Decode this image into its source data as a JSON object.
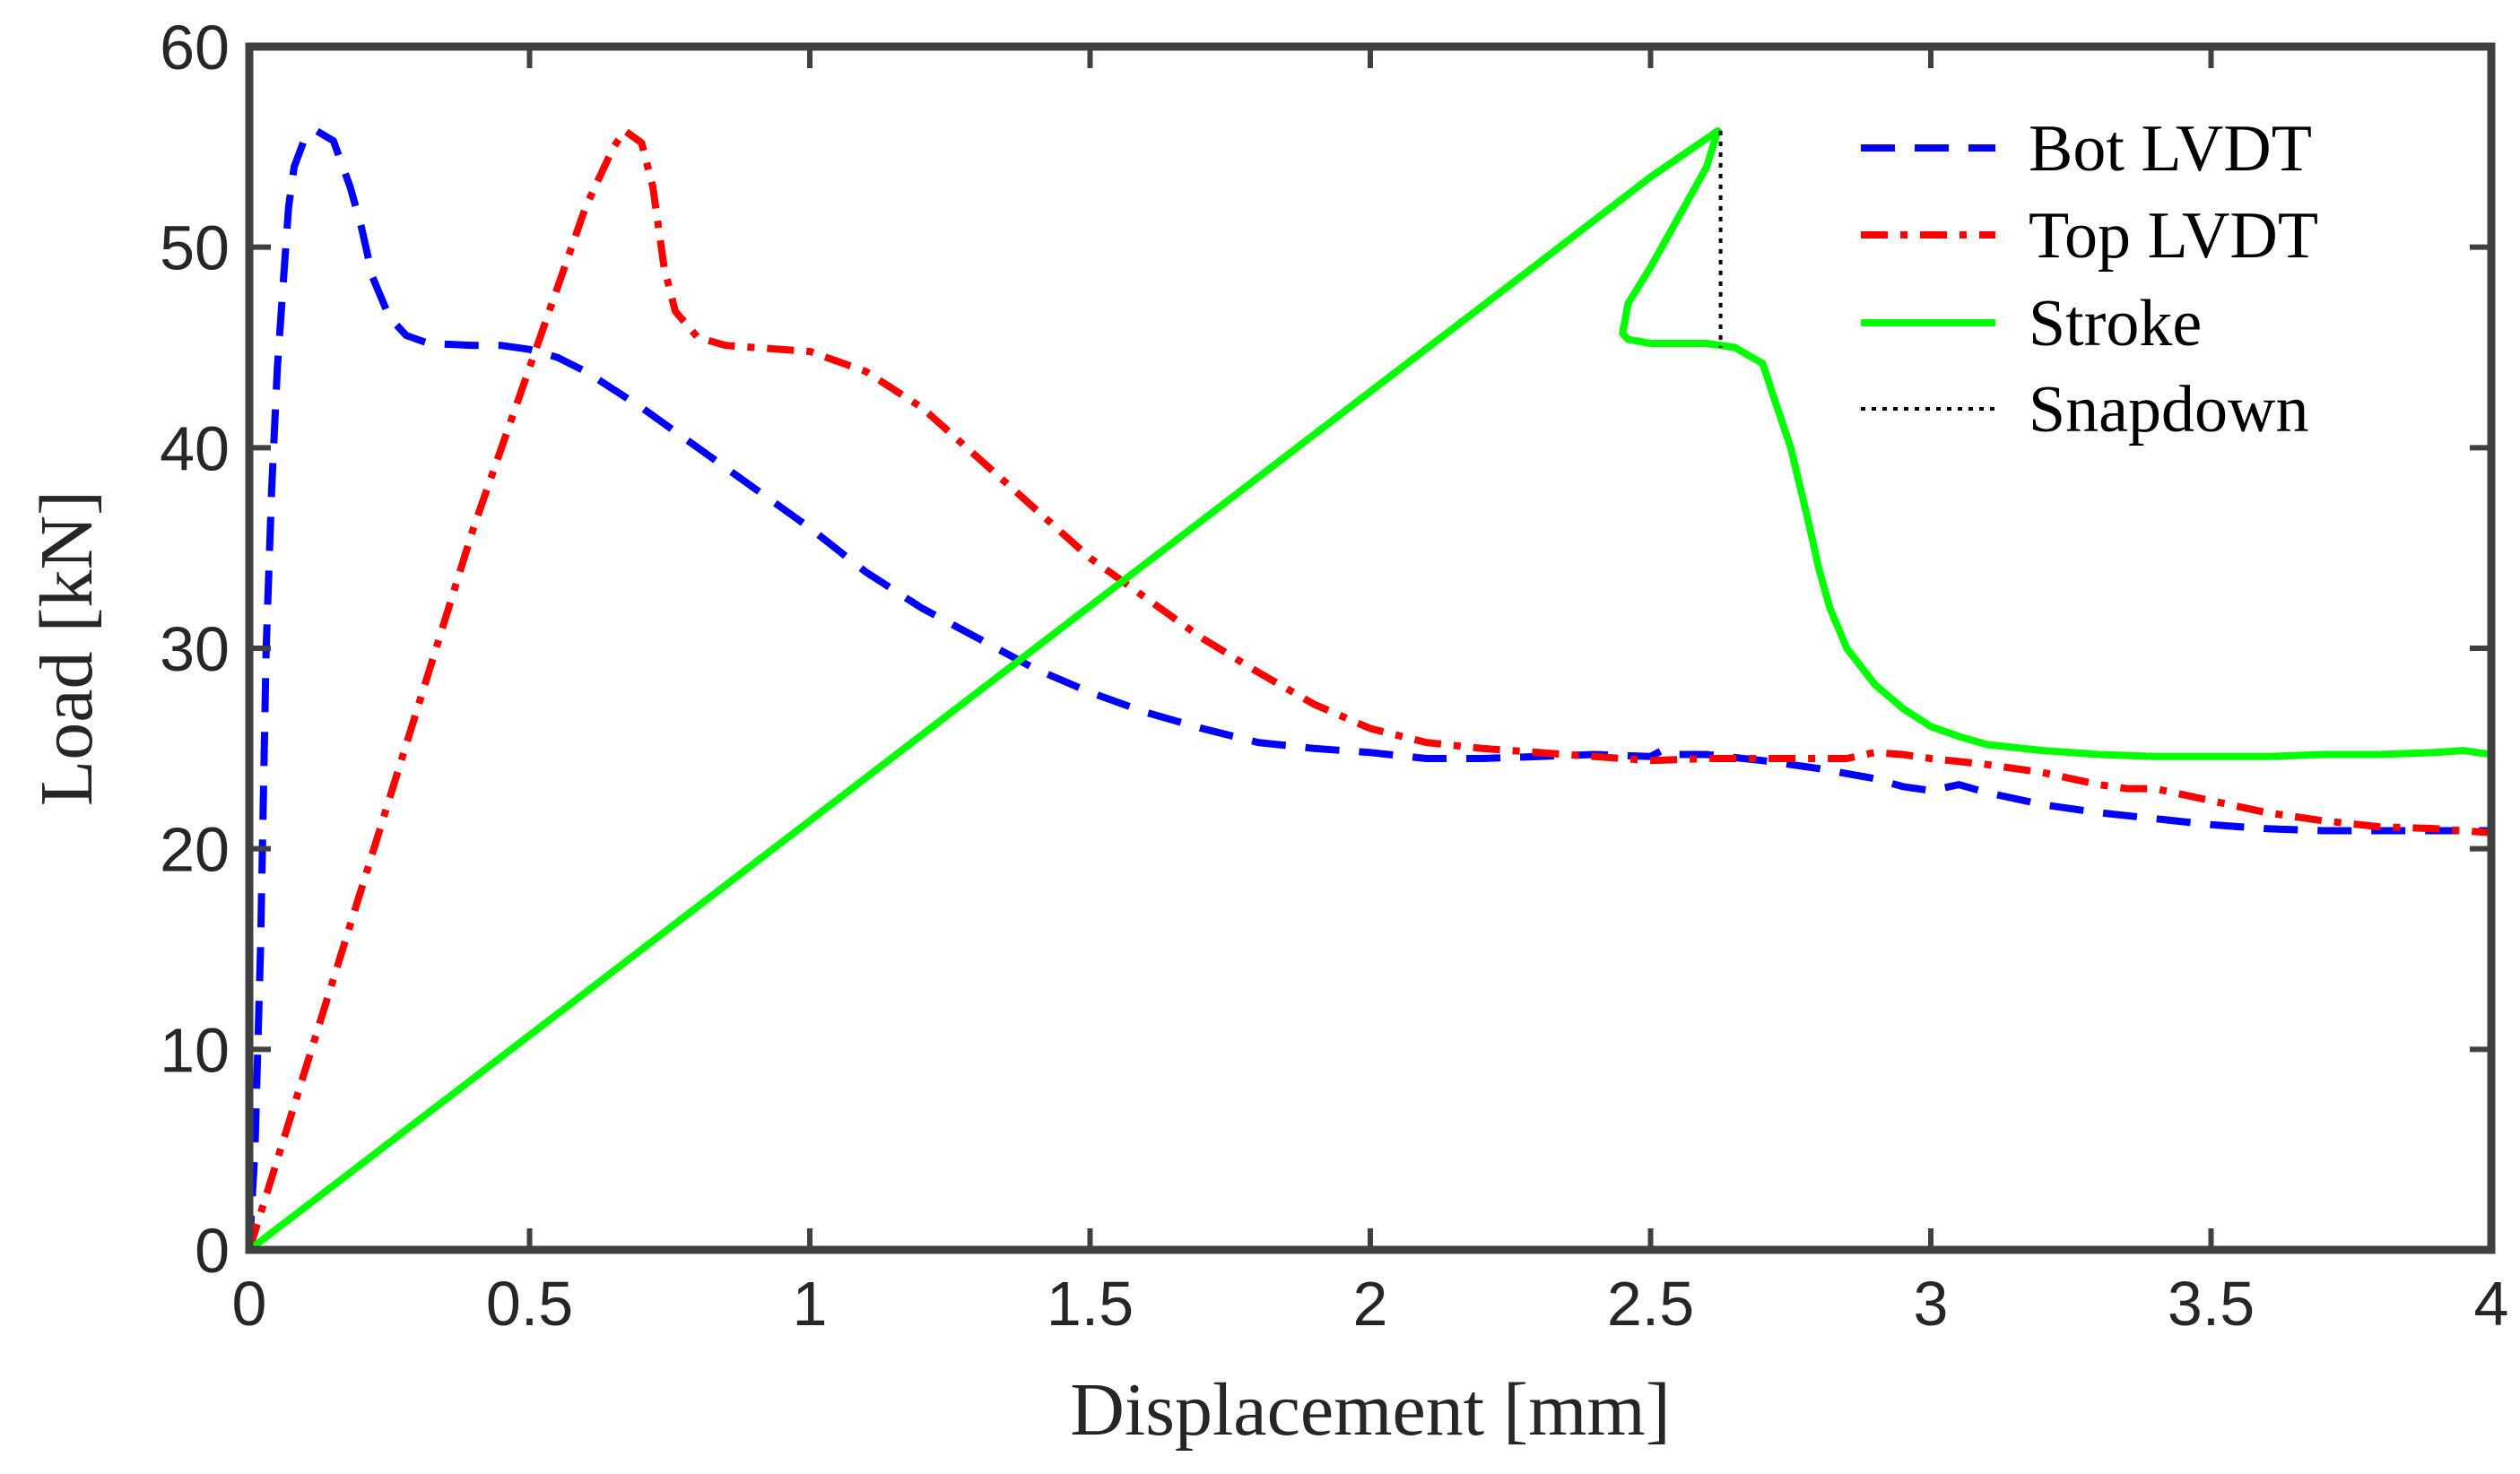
{
  "chart_data": {
    "type": "line",
    "xlabel": "Displacement [mm]",
    "ylabel": "Load [kN]",
    "xlim": [
      0,
      4
    ],
    "ylim": [
      0,
      60
    ],
    "xticks": [
      0,
      0.5,
      1,
      1.5,
      2,
      2.5,
      3,
      3.5,
      4
    ],
    "xtick_labels": [
      "0",
      "0.5",
      "1",
      "1.5",
      "2",
      "2.5",
      "3",
      "3.5",
      "4"
    ],
    "yticks": [
      0,
      10,
      20,
      30,
      40,
      50,
      60
    ],
    "ytick_labels": [
      "0",
      "10",
      "20",
      "30",
      "40",
      "50",
      "60"
    ],
    "grid": false,
    "legend_position": "top-right",
    "colors": {
      "axis": "#404040",
      "bot": "#0000ff",
      "top": "#ff0000",
      "stroke": "#00ff00",
      "snap": "#000000"
    },
    "series": [
      {
        "name": "Bot LVDT",
        "key": "bot",
        "color": "#0000ff",
        "style": "dashed",
        "points": [
          [
            0,
            0
          ],
          [
            0.01,
            5
          ],
          [
            0.02,
            15
          ],
          [
            0.03,
            30
          ],
          [
            0.04,
            38
          ],
          [
            0.05,
            44
          ],
          [
            0.06,
            48
          ],
          [
            0.07,
            52
          ],
          [
            0.08,
            54
          ],
          [
            0.1,
            55.5
          ],
          [
            0.12,
            55.8
          ],
          [
            0.15,
            55.3
          ],
          [
            0.18,
            53
          ],
          [
            0.2,
            51
          ],
          [
            0.22,
            48.5
          ],
          [
            0.25,
            46.5
          ],
          [
            0.28,
            45.6
          ],
          [
            0.32,
            45.2
          ],
          [
            0.4,
            45.1
          ],
          [
            0.45,
            45.1
          ],
          [
            0.5,
            44.9
          ],
          [
            0.55,
            44.5
          ],
          [
            0.6,
            43.8
          ],
          [
            0.7,
            42
          ],
          [
            0.8,
            40
          ],
          [
            0.9,
            38
          ],
          [
            1,
            36
          ],
          [
            1.1,
            33.8
          ],
          [
            1.2,
            32
          ],
          [
            1.3,
            30.5
          ],
          [
            1.4,
            29
          ],
          [
            1.5,
            27.8
          ],
          [
            1.6,
            26.8
          ],
          [
            1.7,
            26
          ],
          [
            1.8,
            25.3
          ],
          [
            1.9,
            25
          ],
          [
            2,
            24.8
          ],
          [
            2.1,
            24.5
          ],
          [
            2.2,
            24.5
          ],
          [
            2.3,
            24.6
          ],
          [
            2.4,
            24.7
          ],
          [
            2.5,
            24.6
          ],
          [
            2.52,
            24.9
          ],
          [
            2.55,
            24.7
          ],
          [
            2.6,
            24.7
          ],
          [
            2.7,
            24.4
          ],
          [
            2.8,
            24
          ],
          [
            2.9,
            23.5
          ],
          [
            2.95,
            23.1
          ],
          [
            3,
            22.9
          ],
          [
            3.05,
            23.2
          ],
          [
            3.1,
            22.8
          ],
          [
            3.2,
            22.2
          ],
          [
            3.3,
            21.8
          ],
          [
            3.4,
            21.5
          ],
          [
            3.5,
            21.2
          ],
          [
            3.6,
            21
          ],
          [
            3.7,
            20.9
          ],
          [
            3.8,
            20.9
          ],
          [
            3.9,
            20.9
          ],
          [
            4,
            20.9
          ]
        ]
      },
      {
        "name": "Top LVDT",
        "key": "top",
        "color": "#ff0000",
        "style": "dashdot",
        "points": [
          [
            0,
            0
          ],
          [
            0.1,
            9
          ],
          [
            0.2,
            18
          ],
          [
            0.3,
            27
          ],
          [
            0.4,
            36
          ],
          [
            0.5,
            44
          ],
          [
            0.6,
            52
          ],
          [
            0.65,
            55
          ],
          [
            0.67,
            55.8
          ],
          [
            0.7,
            55.2
          ],
          [
            0.72,
            53
          ],
          [
            0.74,
            49
          ],
          [
            0.76,
            46.8
          ],
          [
            0.8,
            45.5
          ],
          [
            0.85,
            45.1
          ],
          [
            0.9,
            45
          ],
          [
            1,
            44.8
          ],
          [
            1.1,
            43.8
          ],
          [
            1.2,
            42
          ],
          [
            1.3,
            39.5
          ],
          [
            1.4,
            37
          ],
          [
            1.5,
            34.5
          ],
          [
            1.6,
            32.5
          ],
          [
            1.7,
            30.5
          ],
          [
            1.8,
            28.8
          ],
          [
            1.9,
            27.2
          ],
          [
            2,
            26
          ],
          [
            2.1,
            25.3
          ],
          [
            2.2,
            25
          ],
          [
            2.3,
            24.8
          ],
          [
            2.4,
            24.6
          ],
          [
            2.5,
            24.4
          ],
          [
            2.6,
            24.5
          ],
          [
            2.7,
            24.5
          ],
          [
            2.8,
            24.5
          ],
          [
            2.85,
            24.5
          ],
          [
            2.9,
            24.8
          ],
          [
            2.95,
            24.7
          ],
          [
            3,
            24.5
          ],
          [
            3.1,
            24.2
          ],
          [
            3.2,
            23.8
          ],
          [
            3.3,
            23.2
          ],
          [
            3.35,
            23
          ],
          [
            3.4,
            23
          ],
          [
            3.5,
            22.4
          ],
          [
            3.6,
            21.8
          ],
          [
            3.7,
            21.4
          ],
          [
            3.8,
            21.1
          ],
          [
            3.9,
            21
          ],
          [
            4,
            20.8
          ]
        ]
      },
      {
        "name": "Stroke",
        "key": "stroke",
        "color": "#00ff00",
        "style": "solid",
        "points": [
          [
            0,
            0
          ],
          [
            0.5,
            10.7
          ],
          [
            1,
            21.4
          ],
          [
            1.5,
            32.1
          ],
          [
            2,
            42.8
          ],
          [
            2.3,
            49.2
          ],
          [
            2.5,
            53.5
          ],
          [
            2.62,
            55.8
          ],
          [
            2.6,
            54
          ],
          [
            2.55,
            51.5
          ],
          [
            2.5,
            49
          ],
          [
            2.46,
            47.2
          ],
          [
            2.45,
            45.7
          ],
          [
            2.46,
            45.4
          ],
          [
            2.5,
            45.2
          ],
          [
            2.6,
            45.2
          ],
          [
            2.65,
            45
          ],
          [
            2.7,
            44.2
          ],
          [
            2.72,
            42.5
          ],
          [
            2.75,
            40
          ],
          [
            2.78,
            36.5
          ],
          [
            2.8,
            34
          ],
          [
            2.82,
            32
          ],
          [
            2.85,
            30
          ],
          [
            2.9,
            28.2
          ],
          [
            2.95,
            27
          ],
          [
            3,
            26.1
          ],
          [
            3.05,
            25.6
          ],
          [
            3.1,
            25.2
          ],
          [
            3.2,
            24.9
          ],
          [
            3.3,
            24.7
          ],
          [
            3.4,
            24.6
          ],
          [
            3.5,
            24.6
          ],
          [
            3.6,
            24.6
          ],
          [
            3.7,
            24.7
          ],
          [
            3.8,
            24.7
          ],
          [
            3.9,
            24.8
          ],
          [
            3.95,
            24.9
          ],
          [
            4,
            24.7
          ]
        ]
      },
      {
        "name": "Snapdown",
        "key": "snap",
        "color": "#000000",
        "style": "dotted",
        "points": [
          [
            2.625,
            55.8
          ],
          [
            2.625,
            45.0
          ]
        ]
      }
    ]
  }
}
